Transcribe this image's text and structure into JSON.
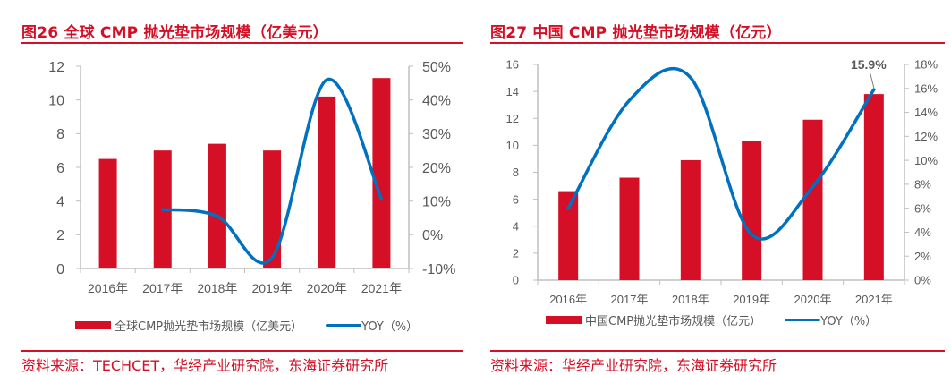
{
  "figures": [
    {
      "title": "图26  全球 CMP 抛光垫市场规模（亿美元）",
      "source": "资料来源：TECHCET，华经产业研究院，东海证券研究所",
      "legend": {
        "bar": "全球CMP抛光垫市场规模（亿美元）",
        "line": "YOY（%）"
      }
    },
    {
      "title": "图27  中国 CMP 抛光垫市场规模（亿元）",
      "source": "资料来源：华经产业研究院，东海证券研究所",
      "legend": {
        "bar": "中国CMP抛光垫市场规模（亿元）",
        "line": "YOY（%）"
      }
    }
  ],
  "colors": {
    "bar": "#d50f25",
    "line": "#0070c0",
    "axis": "#bfbfbf",
    "text": "#595959",
    "title": "#d50f25"
  },
  "chart_data": [
    {
      "type": "bar",
      "title": "全球 CMP 抛光垫市场规模（亿美元）",
      "categories": [
        "2016年",
        "2017年",
        "2018年",
        "2019年",
        "2020年",
        "2021年"
      ],
      "series": [
        {
          "name": "全球CMP抛光垫市场规模（亿美元）",
          "type": "bar",
          "axis": "left",
          "values": [
            6.5,
            7.0,
            7.4,
            7.0,
            10.2,
            11.3
          ]
        },
        {
          "name": "YOY（%）",
          "type": "line",
          "axis": "right",
          "values": [
            null,
            7.5,
            5.5,
            -6.8,
            46.0,
            10.6
          ]
        }
      ],
      "y_left": {
        "range": [
          0,
          12
        ],
        "ticks": [
          "0",
          "2",
          "4",
          "6",
          "8",
          "10",
          "12"
        ],
        "tick_values": [
          0,
          2,
          4,
          6,
          8,
          10,
          12
        ]
      },
      "y_right": {
        "range": [
          -10,
          50
        ],
        "ticks": [
          "-10%",
          "0%",
          "10%",
          "20%",
          "30%",
          "40%",
          "50%"
        ],
        "tick_values": [
          -10,
          0,
          10,
          20,
          30,
          40,
          50
        ]
      },
      "annotations": [],
      "grid": false,
      "legend_position": "bottom"
    },
    {
      "type": "bar",
      "title": "中国 CMP 抛光垫市场规模（亿元）",
      "categories": [
        "2016年",
        "2017年",
        "2018年",
        "2019年",
        "2020年",
        "2021年"
      ],
      "series": [
        {
          "name": "中国CMP抛光垫市场规模（亿元）",
          "type": "bar",
          "axis": "left",
          "values": [
            6.6,
            7.6,
            8.9,
            10.3,
            11.9,
            13.8
          ]
        },
        {
          "name": "YOY（%）",
          "type": "line",
          "axis": "right",
          "values": [
            6.0,
            15.0,
            16.9,
            3.8,
            7.8,
            15.9
          ]
        }
      ],
      "y_left": {
        "range": [
          0,
          16
        ],
        "ticks": [
          "0",
          "2",
          "4",
          "6",
          "8",
          "10",
          "12",
          "14",
          "16"
        ],
        "tick_values": [
          0,
          2,
          4,
          6,
          8,
          10,
          12,
          14,
          16
        ]
      },
      "y_right": {
        "range": [
          0,
          18
        ],
        "ticks": [
          "0%",
          "2%",
          "4%",
          "6%",
          "8%",
          "10%",
          "12%",
          "14%",
          "16%",
          "18%"
        ],
        "tick_values": [
          0,
          2,
          4,
          6,
          8,
          10,
          12,
          14,
          16,
          18
        ]
      },
      "annotations": [
        {
          "series": "YOY（%）",
          "category": "2021年",
          "text": "15.9%"
        }
      ],
      "grid": false,
      "legend_position": "bottom"
    }
  ]
}
